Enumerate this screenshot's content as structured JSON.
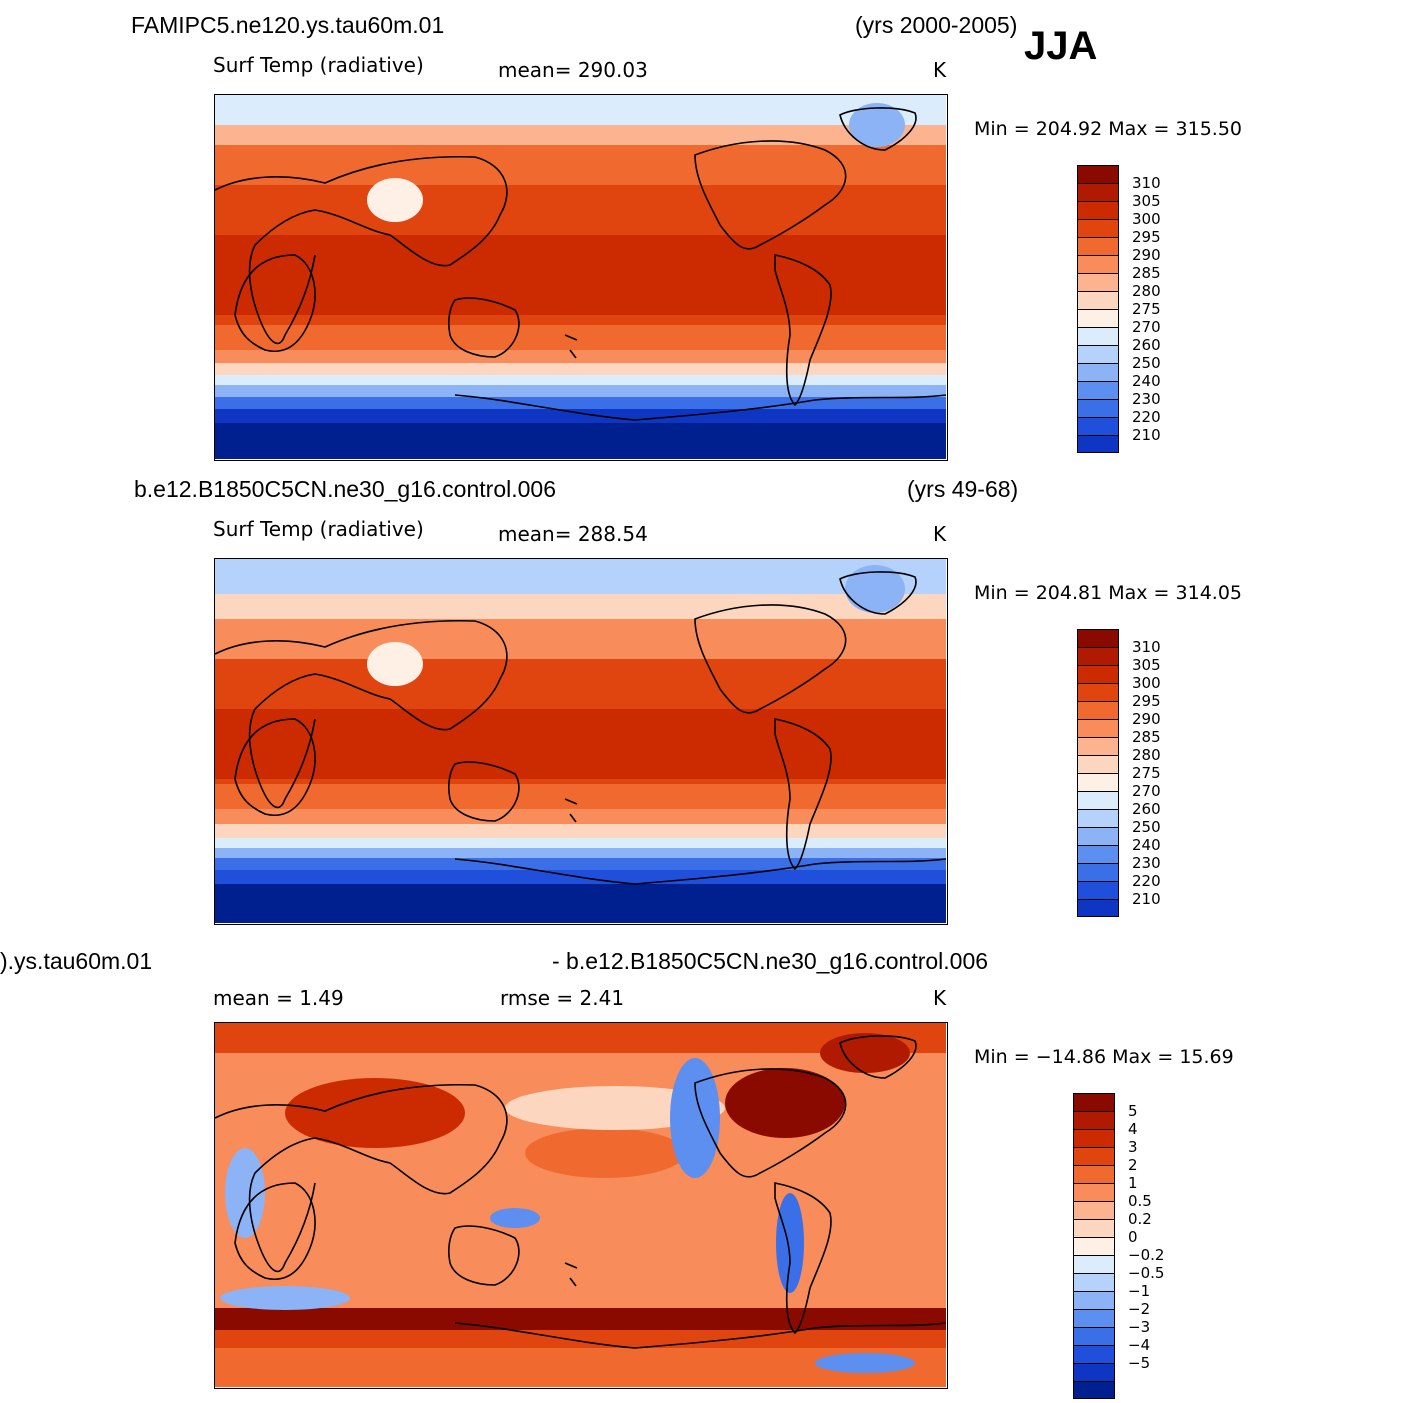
{
  "season": "JJA",
  "panels": [
    {
      "case_title": "FAMIPC5.ne120.ys.tau60m.01",
      "years": "(yrs 2000-2005)",
      "variable": "Surf Temp (radiative)",
      "stat1": "mean=  290.03",
      "stat2": "",
      "units": "K",
      "minmax": "Min  =  204.92  Max  =  315.50",
      "colorbar_labels": [
        "310",
        "305",
        "300",
        "295",
        "290",
        "285",
        "280",
        "275",
        "270",
        "260",
        "250",
        "240",
        "230",
        "220",
        "210"
      ],
      "colorbar_colors": [
        "#8b0a00",
        "#b01a00",
        "#cc2a00",
        "#e04510",
        "#f06a30",
        "#f88c5a",
        "#fcb390",
        "#fdd6bf",
        "#fff0e6",
        "#dbecfc",
        "#b4d2fb",
        "#8bb3f5",
        "#5c8ff0",
        "#3b6fe8",
        "#1f4fdb",
        "#0f36c2",
        "#00208f"
      ]
    },
    {
      "case_title": "b.e12.B1850C5CN.ne30_g16.control.006",
      "years": "(yrs 49-68)",
      "variable": "Surf Temp (radiative)",
      "stat1": "mean=  288.54",
      "stat2": "",
      "units": "K",
      "minmax": "Min  =  204.81  Max  =  314.05",
      "colorbar_labels": [
        "310",
        "305",
        "300",
        "295",
        "290",
        "285",
        "280",
        "275",
        "270",
        "260",
        "250",
        "240",
        "230",
        "220",
        "210"
      ],
      "colorbar_colors": [
        "#8b0a00",
        "#b01a00",
        "#cc2a00",
        "#e04510",
        "#f06a30",
        "#f88c5a",
        "#fcb390",
        "#fdd6bf",
        "#fff0e6",
        "#dbecfc",
        "#b4d2fb",
        "#8bb3f5",
        "#5c8ff0",
        "#3b6fe8",
        "#1f4fdb",
        "#0f36c2",
        "#00208f"
      ]
    },
    {
      "case_title": ").ys.tau60m.01",
      "years": "- b.e12.B1850C5CN.ne30_g16.control.006",
      "variable": "",
      "stat1": "mean  =     1.49",
      "stat2": "rmse  =     2.41",
      "units": "K",
      "minmax": "Min  =  −14.86  Max  =    15.69",
      "colorbar_labels": [
        "5",
        "4",
        "3",
        "2",
        "1",
        "0.5",
        "0.2",
        "0",
        "−0.2",
        "−0.5",
        "−1",
        "−2",
        "−3",
        "−4",
        "−5"
      ],
      "colorbar_colors": [
        "#8b0a00",
        "#b01a00",
        "#cc2a00",
        "#e04510",
        "#f06a30",
        "#f88c5a",
        "#fcb390",
        "#fdd6bf",
        "#fff0e6",
        "#dbecfc",
        "#b4d2fb",
        "#8bb3f5",
        "#5c8ff0",
        "#3b6fe8",
        "#1f4fdb",
        "#0f36c2",
        "#00208f"
      ]
    }
  ]
}
